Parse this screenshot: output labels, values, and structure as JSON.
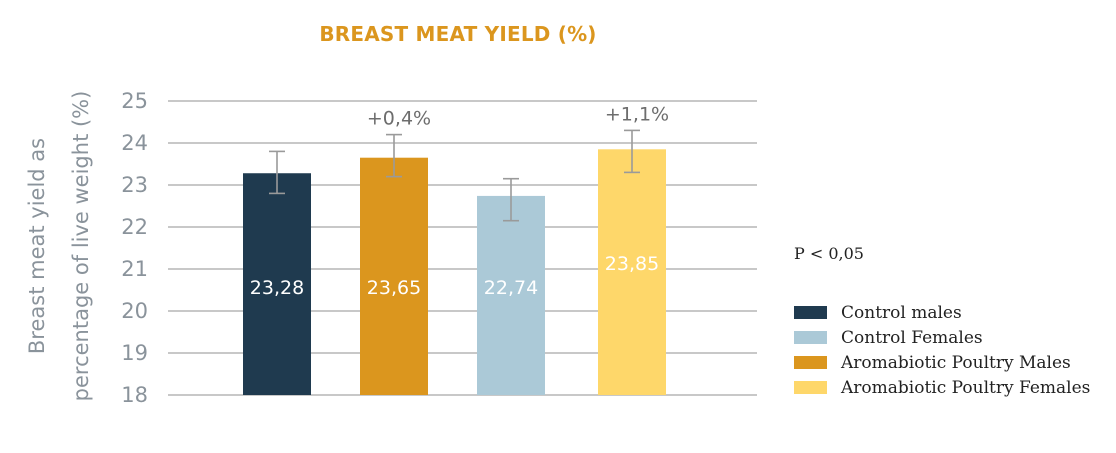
{
  "chart_data": {
    "type": "bar",
    "title": "BREAST MEAT YIELD (%)",
    "ylabel": "Breast meat yield as percentage of live weight (%)",
    "ylabel_lines": [
      "Breast meat yield as",
      "percentage of live weight (%)"
    ],
    "ylim": [
      18,
      25
    ],
    "yticks": [
      "18",
      "19",
      "20",
      "21",
      "22",
      "23",
      "24",
      "25"
    ],
    "grid": true,
    "categories": [
      "Control males",
      "Aromabiotic Poultry Males",
      "Control Females",
      "Aromabiotic Poultry Females"
    ],
    "values": [
      23.28,
      23.65,
      22.74,
      23.85
    ],
    "value_labels": [
      "23,28",
      "23,65",
      "22,74",
      "23,85"
    ],
    "error_low": [
      22.8,
      23.2,
      22.15,
      23.3
    ],
    "error_high": [
      23.8,
      24.2,
      23.15,
      24.3
    ],
    "annotations": [
      "",
      "+0,4%",
      "",
      "+1,1%"
    ],
    "colors": [
      "#1f3a4f",
      "#db961e",
      "#abc9d7",
      "#fed76a"
    ],
    "note": "P < 0,05",
    "legend_position": "right",
    "legend": [
      {
        "label": "Control males",
        "color": "#1f3a4f"
      },
      {
        "label": "Control Females",
        "color": "#abc9d7"
      },
      {
        "label": "Aromabiotic Poultry Males",
        "color": "#db961e"
      },
      {
        "label": "Aromabiotic Poultry Females",
        "color": "#fed76a"
      }
    ]
  },
  "style": {
    "title_color": "#db961e",
    "axis_text_color": "#8a939b",
    "grid_color": "#a8a8a8",
    "annotation_color": "#6d6d6d",
    "error_bar_color": "#9a9a9a"
  }
}
